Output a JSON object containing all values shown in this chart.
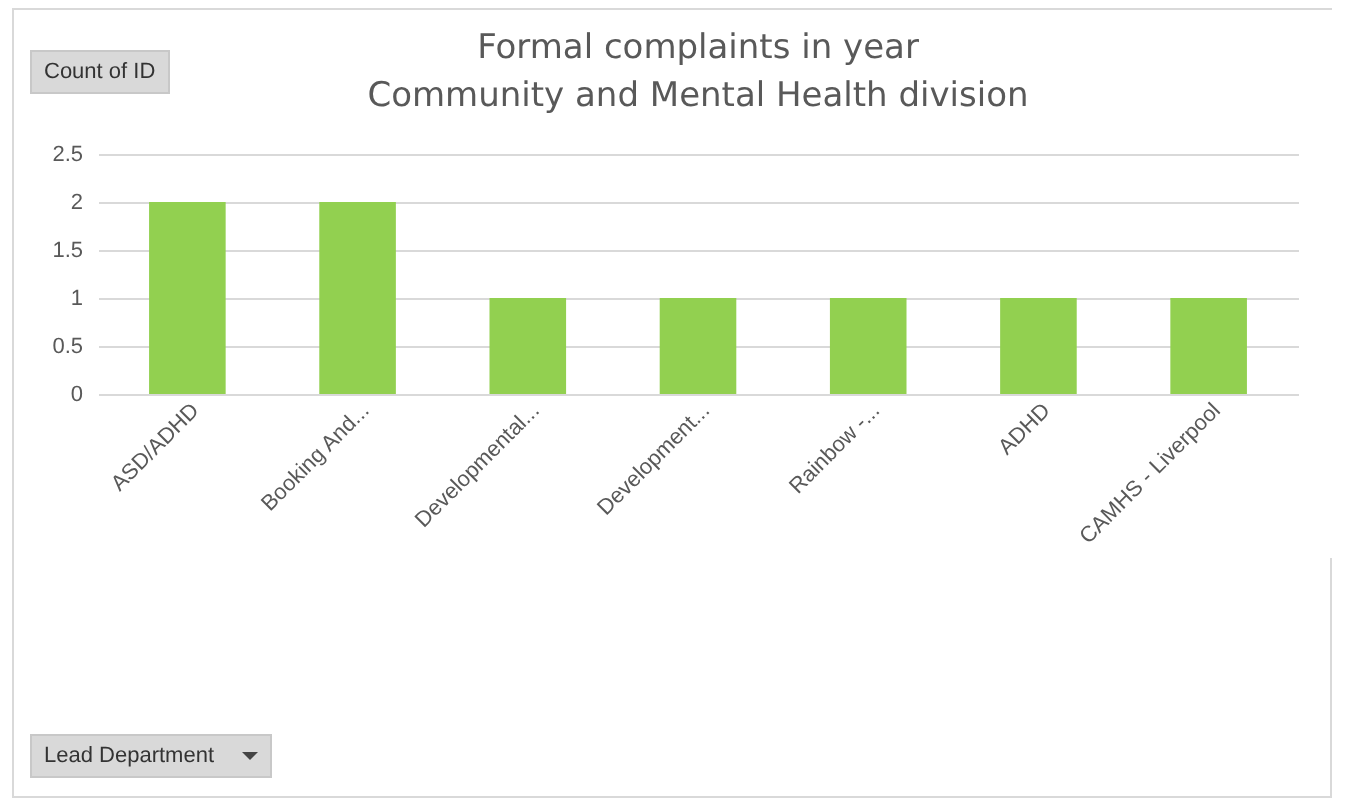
{
  "chart_data": {
    "type": "bar",
    "title": "Formal complaints in year\nCommunity and Mental Health division",
    "annotations": [
      "Count of ID",
      "Lead Department"
    ],
    "categories": [
      "ASD/ADHD",
      "Booking And...",
      "Developmental...",
      "Development...",
      "Rainbow -...",
      "ADHD",
      "CAMHS - Liverpool"
    ],
    "values": [
      2,
      2,
      1,
      1,
      1,
      1,
      1
    ],
    "color": "#92d050",
    "ylim": [
      0,
      2.5
    ],
    "yticks": [
      0,
      0.5,
      1,
      1.5,
      2,
      2.5
    ],
    "grid": "y"
  }
}
